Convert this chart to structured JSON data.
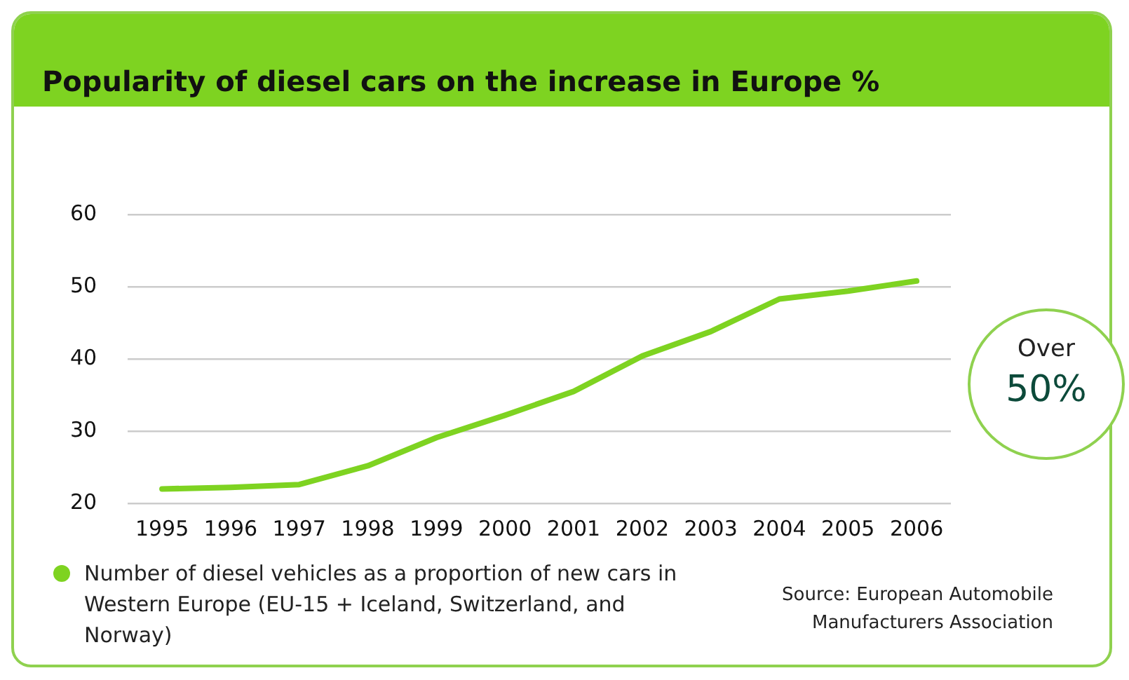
{
  "chart_data": {
    "type": "line",
    "title": "Popularity of diesel cars on the increase in Europe %",
    "categories": [
      "1995",
      "1996",
      "1997",
      "1998",
      "1999",
      "2000",
      "2001",
      "2002",
      "2003",
      "2004",
      "2005",
      "2006"
    ],
    "series": [
      {
        "name": "Number of diesel vehicles as a proportion of new cars in Western Europe (EU-15 + Iceland, Switzerland, and Norway)",
        "color": "#7ed321",
        "values": [
          22.0,
          22.2,
          22.6,
          25.2,
          29.1,
          32.2,
          35.5,
          40.4,
          43.8,
          48.3,
          49.4,
          50.8
        ]
      }
    ],
    "ylim": [
      20,
      60
    ],
    "yticks": [
      20,
      30,
      40,
      50,
      60
    ],
    "grid": "y",
    "legend": "bottom left",
    "marker": "none",
    "line_style": "solid",
    "annotations": [
      "Over 50%",
      "Source: European Automobile Manufacturers Association"
    ]
  }
}
